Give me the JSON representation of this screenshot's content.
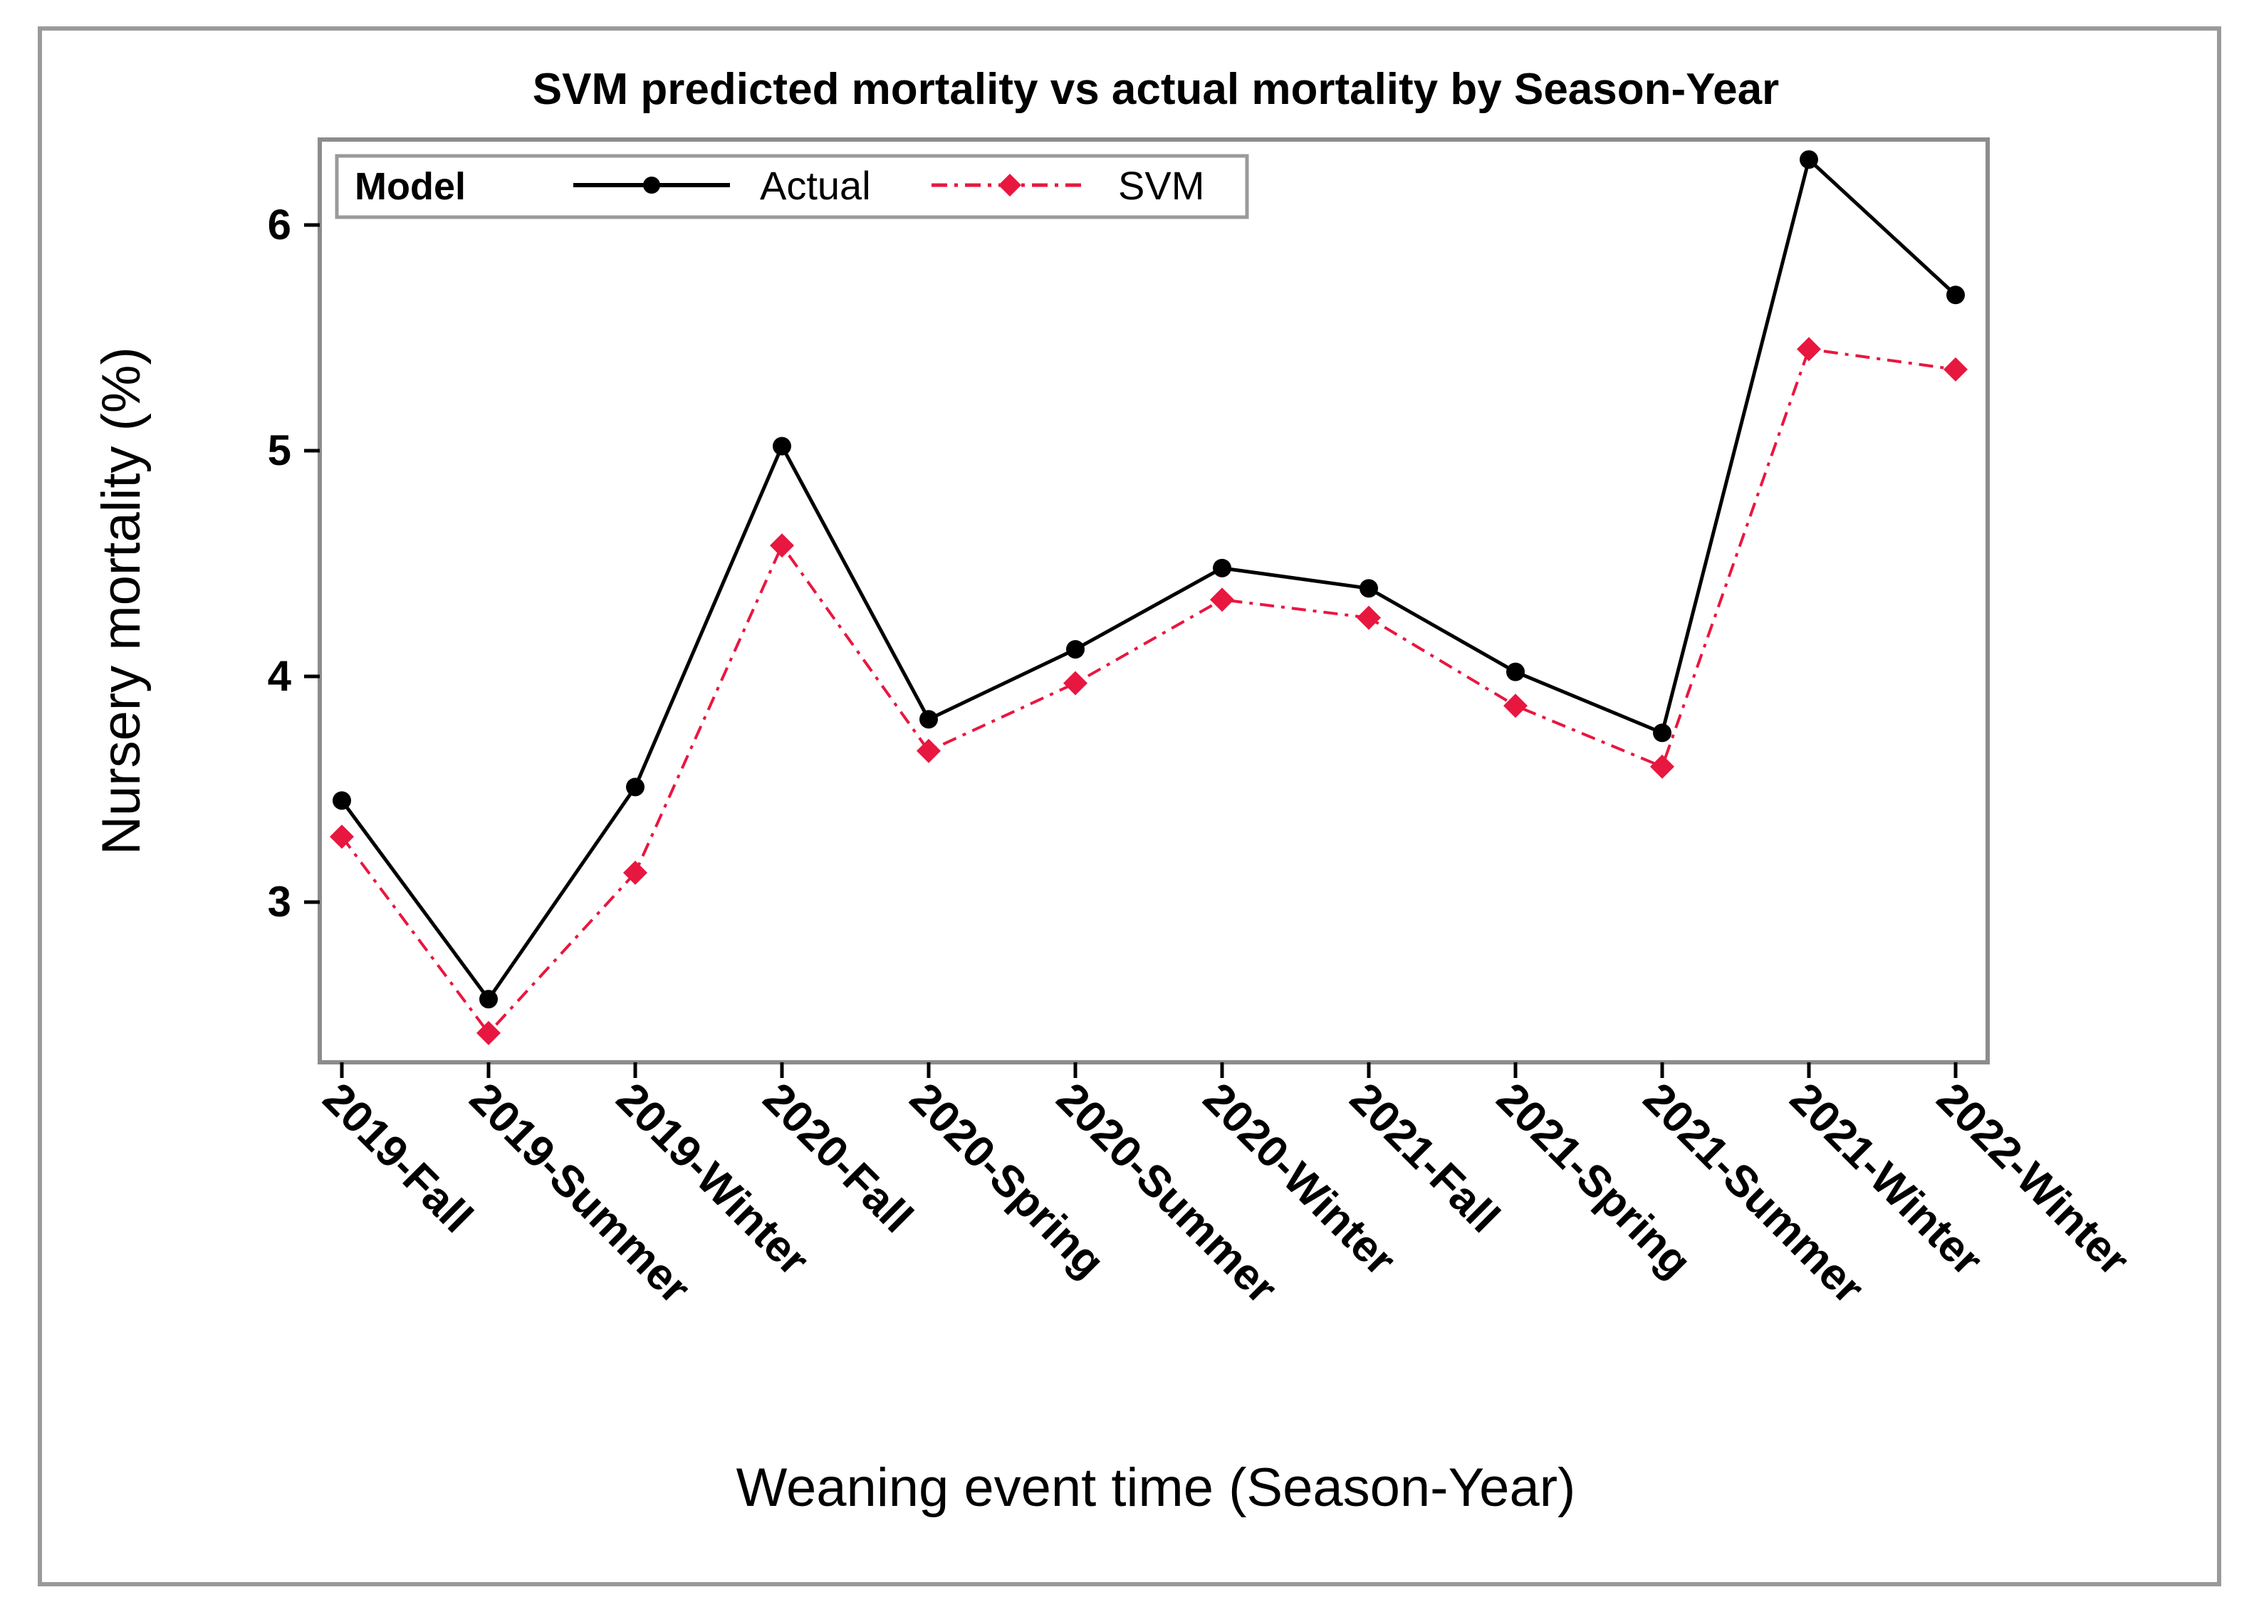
{
  "chart_data": {
    "type": "line",
    "title": "SVM predicted mortality vs actual mortality by Season-Year",
    "xlabel": "Weaning event time (Season-Year)",
    "ylabel": "Nursery mortality (%)",
    "categories": [
      "2019-Fall",
      "2019-Summer",
      "2019-Winter",
      "2020-Fall",
      "2020-Spring",
      "2020-Summer",
      "2020-Winter",
      "2021-Fall",
      "2021-Spring",
      "2021-Summer",
      "2021-Winter",
      "2022-Winter"
    ],
    "ylim": [
      2.4,
      6.4
    ],
    "yticks": [
      3,
      4,
      5,
      6
    ],
    "legend": {
      "title": "Model",
      "position": "top-left"
    },
    "series": [
      {
        "name": "Actual",
        "color": "#000000",
        "marker": "circle",
        "line": "solid",
        "values": [
          3.45,
          2.57,
          3.51,
          5.02,
          3.81,
          4.12,
          4.48,
          4.39,
          4.02,
          3.75,
          6.29,
          5.69
        ]
      },
      {
        "name": "SVM",
        "color": "#e8173f",
        "marker": "diamond",
        "line": "dash-dot",
        "values": [
          3.29,
          2.42,
          3.13,
          4.58,
          3.67,
          3.97,
          4.34,
          4.26,
          3.87,
          3.6,
          5.45,
          5.36
        ]
      }
    ]
  }
}
